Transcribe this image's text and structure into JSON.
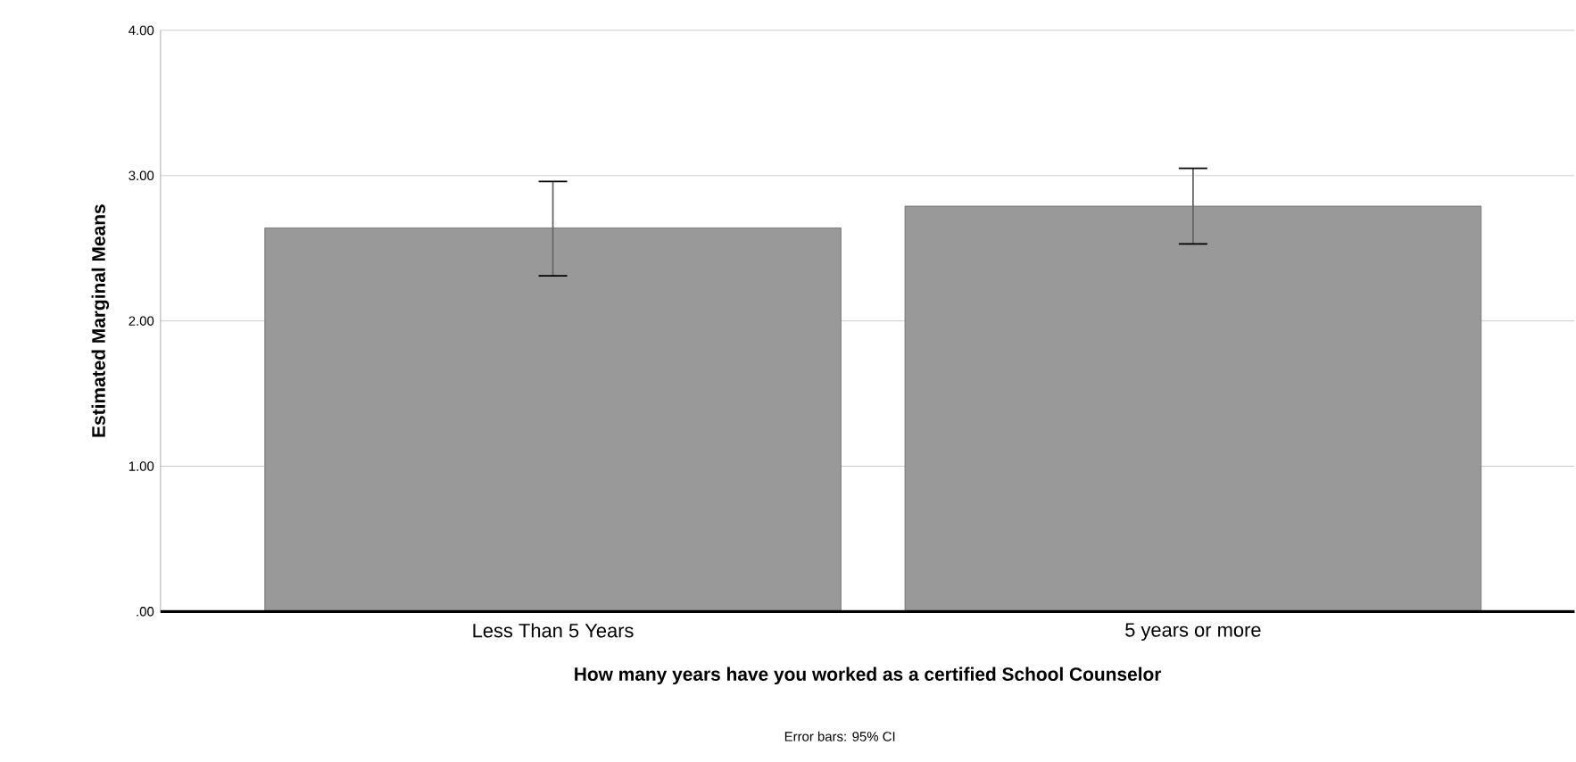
{
  "chart_data": {
    "type": "bar",
    "xlabel": "How many years have you worked as a certified School Counselor",
    "ylabel": "Estimated Marginal Means",
    "categories": [
      "Less Than 5 Years",
      "5 years or more"
    ],
    "values": [
      2.64,
      2.79
    ],
    "errors": [
      [
        2.31,
        2.96
      ],
      [
        2.53,
        3.05
      ]
    ],
    "color": "#999999",
    "ylim": [
      0,
      4
    ],
    "yticks": [
      {
        "value": 0,
        "label": ".00"
      },
      {
        "value": 1,
        "label": "1.00"
      },
      {
        "value": 2,
        "label": "2.00"
      },
      {
        "value": 3,
        "label": "3.00"
      },
      {
        "value": 4,
        "label": "4.00"
      }
    ],
    "grid": "y",
    "annotations": [
      "Error bars: 95% CI"
    ]
  }
}
